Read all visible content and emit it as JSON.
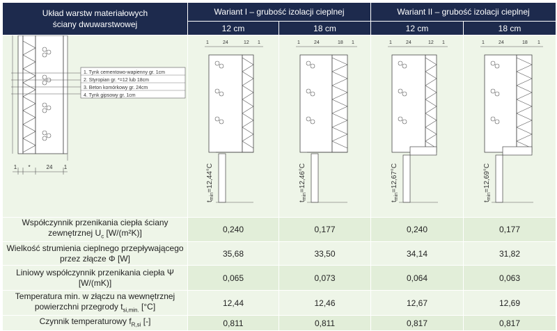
{
  "header": {
    "layers_title_line1": "Układ warstw materiałowych",
    "layers_title_line2": "ściany dwuwarstwowej",
    "variant1": "Wariant I – grubość izolacji cieplnej",
    "variant2": "Wariant II – grubość izolacji cieplnej",
    "thickness": [
      "12 cm",
      "18 cm",
      "12 cm",
      "18 cm"
    ]
  },
  "legend": {
    "items": [
      "1. Tynk cementowo-wapienny gr. 1cm",
      "2. Styropian gr. *=12 lub 18cm",
      "3. Beton komórkowy gr. 24cm",
      "4. Tynk gipsowy gr. 1cm"
    ],
    "dims": [
      "1",
      "*",
      "24",
      "1"
    ]
  },
  "drawings": [
    {
      "dims": [
        "1",
        "24",
        "12",
        "1"
      ],
      "temp": "t",
      "temp_sub": "min",
      "temp_val": "=12,44°C"
    },
    {
      "dims": [
        "1",
        "24",
        "18",
        "1"
      ],
      "temp": "t",
      "temp_sub": "min",
      "temp_val": "=12,46°C"
    },
    {
      "dims": [
        "1",
        "24",
        "12",
        "1"
      ],
      "temp": "t",
      "temp_sub": "min",
      "temp_val": "=12,67°C"
    },
    {
      "dims": [
        "1",
        "24",
        "18",
        "1"
      ],
      "temp": "t",
      "temp_sub": "min",
      "temp_val": "=12,69°C"
    }
  ],
  "rows": [
    {
      "label1": "Współczynnik przenikania ciepła ściany",
      "label2": "zewnętrznej U",
      "sub": "c",
      "label3": " [W/(m²K)]",
      "values": [
        "0,240",
        "0,177",
        "0,240",
        "0,177"
      ]
    },
    {
      "label1": "Wielkość strumienia cieplnego przepływającego",
      "label2": "przez złącze Φ [W]",
      "sub": "",
      "label3": "",
      "values": [
        "35,68",
        "33,50",
        "34,14",
        "31,82"
      ]
    },
    {
      "label1": "Liniowy współczynnik przenikania ciepła Ψ",
      "label2": "[W/(mK)]",
      "sub": "",
      "label3": "",
      "values": [
        "0,065",
        "0,073",
        "0,064",
        "0,063"
      ]
    },
    {
      "label1": "Temperatura min. w złączu na wewnętrznej",
      "label2": "powierzchni przegrody t",
      "sub": "si,min.",
      "label3": " [°C]",
      "values": [
        "12,44",
        "12,46",
        "12,67",
        "12,69"
      ]
    },
    {
      "label1": "Czynnik temperaturowy f",
      "label2": "",
      "sub": "R,si",
      "label3": " [-]",
      "values": [
        "0,811",
        "0,811",
        "0,817",
        "0,817"
      ]
    }
  ],
  "colors": {
    "header_bg": "#1d2a4d",
    "cell_bg": "#eef5e8",
    "cell_alt": "#e2eed9"
  }
}
